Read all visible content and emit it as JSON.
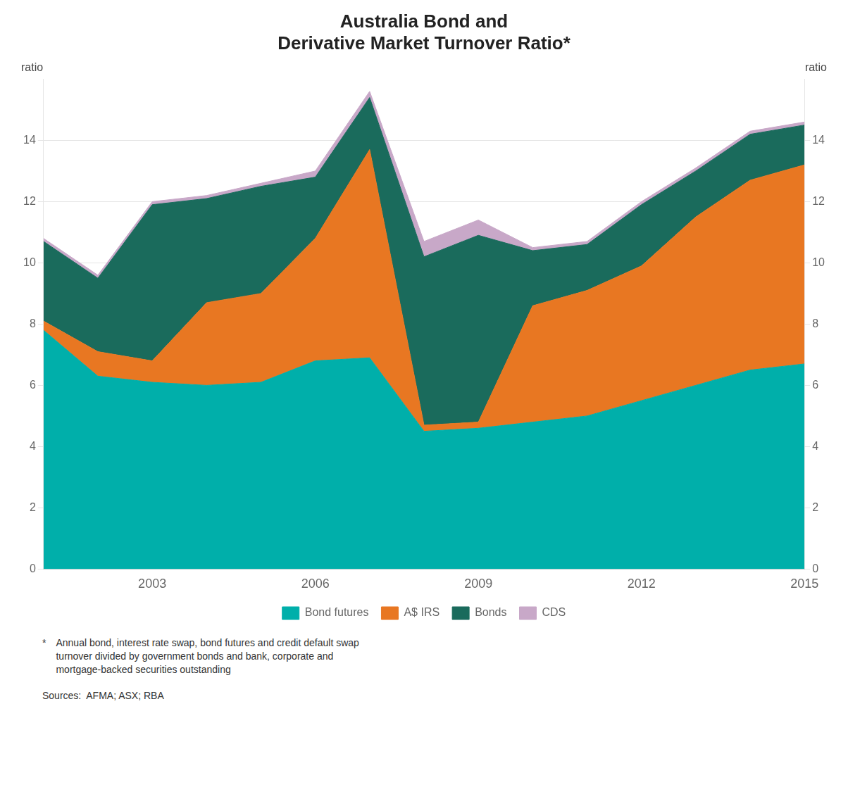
{
  "chart_data": {
    "type": "area",
    "title": "Australia Bond and\nDerivative Market Turnover Ratio*",
    "ylabel": "ratio",
    "y2label": "ratio",
    "x": [
      2001,
      2002,
      2003,
      2004,
      2005,
      2006,
      2007,
      2008,
      2009,
      2010,
      2011,
      2012,
      2013,
      2014,
      2015
    ],
    "series": [
      {
        "name": "Bond futures",
        "color": "#00AFAA",
        "values": [
          7.8,
          6.3,
          6.1,
          6.0,
          6.1,
          6.8,
          6.9,
          4.5,
          4.6,
          4.8,
          5.0,
          5.5,
          6.0,
          6.5,
          6.7
        ]
      },
      {
        "name": "A$ IRS",
        "color": "#E87722",
        "values": [
          0.3,
          0.8,
          0.7,
          2.7,
          2.9,
          4.0,
          6.8,
          0.2,
          0.2,
          3.8,
          4.1,
          4.4,
          5.5,
          6.2,
          6.5
        ]
      },
      {
        "name": "Bonds",
        "color": "#1A6B5C",
        "values": [
          2.6,
          2.4,
          5.1,
          3.4,
          3.5,
          2.0,
          1.7,
          5.5,
          6.1,
          1.8,
          1.5,
          2.0,
          1.5,
          1.5,
          1.3
        ]
      },
      {
        "name": "CDS",
        "color": "#C8A8C8",
        "values": [
          0.1,
          0.1,
          0.1,
          0.1,
          0.1,
          0.2,
          0.2,
          0.5,
          0.5,
          0.1,
          0.1,
          0.1,
          0.1,
          0.1,
          0.1
        ]
      }
    ],
    "xlim": [
      2001,
      2015
    ],
    "xticks": [
      2003,
      2006,
      2009,
      2012,
      2015
    ],
    "ylim": [
      0,
      16
    ],
    "yticks": [
      0,
      2,
      4,
      6,
      8,
      10,
      12,
      14
    ],
    "y2lim": [
      0,
      16
    ],
    "y2ticks": [
      0,
      2,
      4,
      6,
      8,
      10,
      12,
      14
    ],
    "stacked": true,
    "grid": true,
    "legend": "bottom",
    "annotations": [
      "*",
      "Annual bond, interest rate swap, bond futures and credit default swap\nturnover divided by government bonds and bank, corporate and\nmortgage-backed securities outstanding",
      "Sources:  AFMA; ASX; RBA"
    ]
  }
}
